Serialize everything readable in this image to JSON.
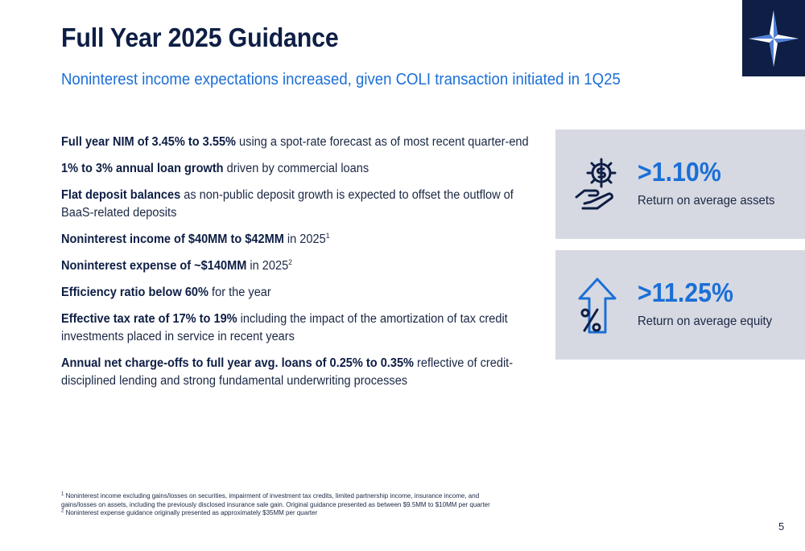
{
  "header": {
    "title": "Full Year 2025 Guidance",
    "subtitle": "Noninterest income expectations increased, given COLI transaction initiated in 1Q25",
    "logo_icon": "compass-star-icon"
  },
  "bullets": [
    {
      "bold": "Full year NIM of 3.45% to 3.55%",
      "text": " using a spot-rate forecast as of most recent quarter-end",
      "sup": ""
    },
    {
      "bold": "1% to 3% annual loan growth",
      "text": " driven by commercial loans",
      "sup": ""
    },
    {
      "bold": "Flat deposit balances",
      "text": " as non-public deposit growth is expected to offset the outflow of BaaS-related deposits",
      "sup": ""
    },
    {
      "bold": "Noninterest income of $40MM to $42MM",
      "text": " in 2025",
      "sup": "1"
    },
    {
      "bold": "Noninterest expense of ~$140MM",
      "text": " in 2025",
      "sup": "2"
    },
    {
      "bold": "Efficiency ratio below 60%",
      "text": " for the year",
      "sup": ""
    },
    {
      "bold": "Effective tax rate of 17% to 19%",
      "text": " including the impact of the amortization of tax credit investments placed in service in recent years",
      "sup": ""
    },
    {
      "bold": "Annual net charge-offs to full year avg. loans of 0.25% to 0.35%",
      "text": " reflective of credit-disciplined lending and strong fundamental underwriting processes",
      "sup": ""
    }
  ],
  "metrics": [
    {
      "value": ">1.10%",
      "label": "Return on average assets",
      "icon": "hand-dollar-gear-icon"
    },
    {
      "value": ">11.25%",
      "label": "Return on average equity",
      "icon": "arrow-up-percent-icon"
    }
  ],
  "footnotes": [
    {
      "sup": "1",
      "text": " Noninterest income excluding gains/losses on securities, impairment of investment tax credits, limited partnership income, insurance income, and"
    },
    {
      "sup": "",
      "text": "gains/losses on assets, including the previously disclosed insurance sale gain. Original guidance presented as between $9.5MM to $10MM per quarter"
    },
    {
      "sup": "2",
      "text": " Noninterest expense guidance originally presented as approximately $35MM per quarter"
    }
  ],
  "page_number": "5",
  "colors": {
    "navy": "#0e1e45",
    "accent_blue": "#1b6fd6",
    "card_gray": "#d7d9e2"
  }
}
